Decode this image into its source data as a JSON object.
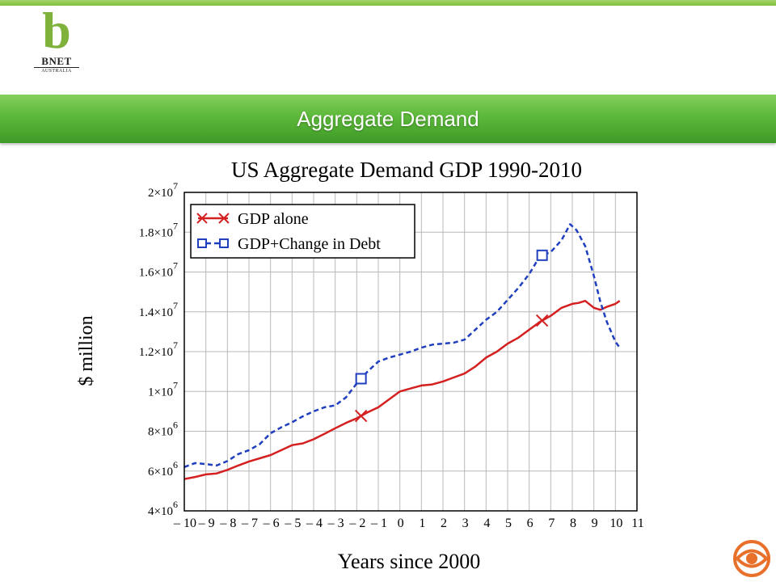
{
  "header": {
    "logo_letter": "b",
    "logo_brand": "BNET",
    "logo_sub": "AUSTRALIA",
    "banner_title": "Aggregate Demand",
    "accent_color": "#5cb83a",
    "corner_icon": "cbs-eye-icon"
  },
  "chart_data": {
    "type": "line",
    "title": "US Aggregate Demand GDP 1990-2010",
    "xlabel": "Years since 2000",
    "ylabel": "$ million",
    "xlim": [
      -10,
      11
    ],
    "ylim": [
      4000000,
      20000000
    ],
    "grid": true,
    "legend_placement": "top-left",
    "x_ticks": [
      -10,
      -9,
      -8,
      -7,
      -6,
      -5,
      -4,
      -3,
      -2,
      -1,
      0,
      1,
      2,
      3,
      4,
      5,
      6,
      7,
      8,
      9,
      10,
      11
    ],
    "x_tick_labels": [
      "– 10",
      "– 9",
      "– 8",
      "– 7",
      "– 6",
      "– 5",
      "– 4",
      "– 3",
      "– 2",
      "– 1",
      "0",
      "1",
      "2",
      "3",
      "4",
      "5",
      "6",
      "7",
      "8",
      "9",
      "10",
      "11"
    ],
    "y_ticks": [
      {
        "value": 4000000,
        "mantissa": "4",
        "op": "×",
        "base": "10",
        "exp": "6"
      },
      {
        "value": 6000000,
        "mantissa": "6",
        "op": "×",
        "base": "10",
        "exp": "6"
      },
      {
        "value": 8000000,
        "mantissa": "8",
        "op": "×",
        "base": "10",
        "exp": "6"
      },
      {
        "value": 10000000,
        "mantissa": "1",
        "op": "×",
        "base": "10",
        "exp": "7"
      },
      {
        "value": 12000000,
        "mantissa": "1.2",
        "op": "×",
        "base": "10",
        "exp": "7"
      },
      {
        "value": 14000000,
        "mantissa": "1.4",
        "op": "×",
        "base": "10",
        "exp": "7"
      },
      {
        "value": 16000000,
        "mantissa": "1.6",
        "op": "×",
        "base": "10",
        "exp": "7"
      },
      {
        "value": 18000000,
        "mantissa": "1.8",
        "op": "×",
        "base": "10",
        "exp": "7"
      },
      {
        "value": 20000000,
        "mantissa": "2",
        "op": "×",
        "base": "10",
        "exp": "7"
      }
    ],
    "series": [
      {
        "name": "GDP alone",
        "color": "#d42020",
        "style": "solid",
        "marker": "x",
        "marker_x": [
          -1.8,
          6.6
        ],
        "x": [
          -10,
          -9.5,
          -9,
          -8.5,
          -8,
          -7.5,
          -7,
          -6.5,
          -6,
          -5.5,
          -5,
          -4.5,
          -4,
          -3.5,
          -3,
          -2.5,
          -2,
          -1.5,
          -1,
          -0.5,
          0,
          0.5,
          1,
          1.5,
          2,
          2.5,
          3,
          3.5,
          4,
          4.5,
          5,
          5.5,
          6,
          6.5,
          7,
          7.5,
          8,
          8.3,
          8.6,
          9,
          9.3,
          9.6,
          10,
          10.2
        ],
        "y": [
          5600000,
          5700000,
          5830000,
          5880000,
          6060000,
          6280000,
          6480000,
          6640000,
          6800000,
          7050000,
          7300000,
          7390000,
          7600000,
          7870000,
          8150000,
          8420000,
          8650000,
          8950000,
          9200000,
          9600000,
          10000000,
          10150000,
          10300000,
          10350000,
          10500000,
          10700000,
          10900000,
          11250000,
          11700000,
          12000000,
          12400000,
          12700000,
          13100000,
          13500000,
          13800000,
          14200000,
          14400000,
          14450000,
          14550000,
          14200000,
          14100000,
          14250000,
          14400000,
          14550000
        ]
      },
      {
        "name": "GDP+Change in Debt",
        "color": "#1f3fbf",
        "style": "dashed",
        "marker": "square",
        "marker_x": [
          -1.8,
          6.6
        ],
        "x": [
          -10,
          -9.5,
          -9,
          -8.5,
          -8,
          -7.5,
          -7,
          -6.5,
          -6,
          -5.5,
          -5,
          -4.5,
          -4,
          -3.5,
          -3,
          -2.5,
          -2,
          -1.5,
          -1,
          -0.5,
          0,
          0.5,
          1,
          1.5,
          2,
          2.5,
          3,
          3.5,
          4,
          4.5,
          5,
          5.5,
          6,
          6.5,
          7,
          7.5,
          7.9,
          8.2,
          8.6,
          9,
          9.3,
          9.6,
          10,
          10.2
        ],
        "y": [
          6200000,
          6400000,
          6350000,
          6280000,
          6500000,
          6850000,
          7050000,
          7350000,
          7900000,
          8200000,
          8450000,
          8750000,
          9000000,
          9200000,
          9300000,
          9700000,
          10400000,
          11000000,
          11500000,
          11700000,
          11850000,
          12000000,
          12200000,
          12350000,
          12400000,
          12450000,
          12600000,
          13100000,
          13600000,
          14000000,
          14600000,
          15200000,
          15900000,
          16800000,
          17000000,
          17600000,
          18400000,
          18100000,
          17300000,
          15800000,
          14500000,
          13500000,
          12500000,
          12200000
        ]
      }
    ]
  }
}
